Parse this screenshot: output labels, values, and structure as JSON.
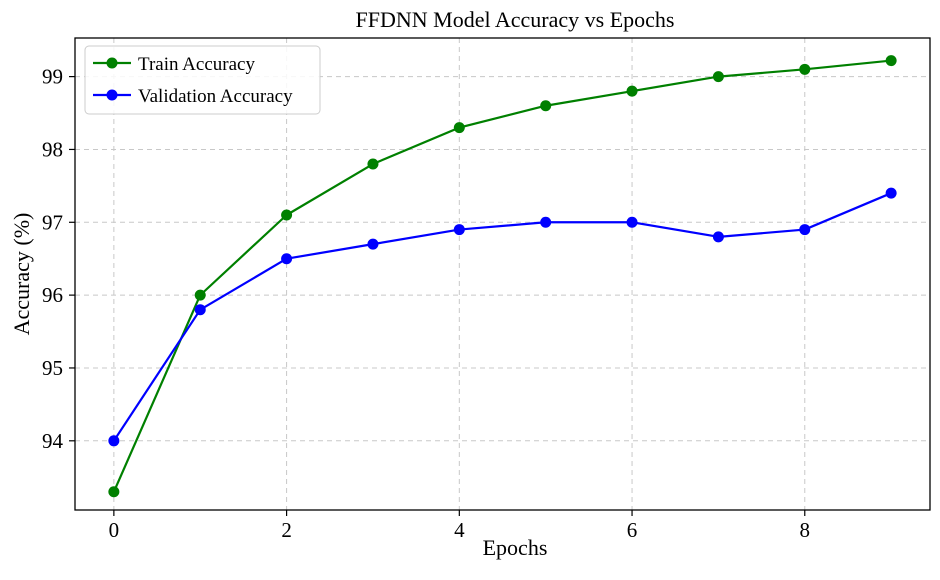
{
  "chart_data": {
    "type": "line",
    "title": "FFDNN Model Accuracy vs Epochs",
    "xlabel": "Epochs",
    "ylabel": "Accuracy (%)",
    "x": [
      0,
      1,
      2,
      3,
      4,
      5,
      6,
      7,
      8,
      9
    ],
    "xlim": [
      -0.45,
      9.45
    ],
    "ylim": [
      93.05,
      99.53
    ],
    "xticks": [
      0,
      2,
      4,
      6,
      8
    ],
    "yticks": [
      94,
      95,
      96,
      97,
      98,
      99
    ],
    "grid": true,
    "legend_position": "top-left",
    "series": [
      {
        "name": "Train Accuracy",
        "color": "#008000",
        "marker": "circle",
        "values": [
          93.3,
          96.0,
          97.1,
          97.8,
          98.3,
          98.6,
          98.8,
          99.0,
          99.1,
          99.22
        ]
      },
      {
        "name": "Validation Accuracy",
        "color": "#0000ff",
        "marker": "circle",
        "values": [
          94.0,
          95.8,
          96.5,
          96.7,
          96.9,
          97.0,
          97.0,
          96.8,
          96.9,
          97.4
        ]
      }
    ]
  }
}
